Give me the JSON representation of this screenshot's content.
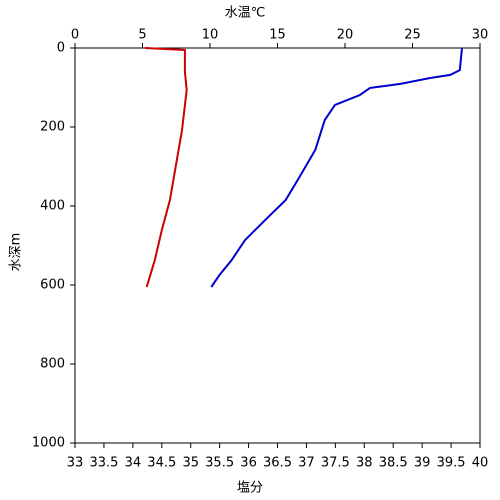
{
  "chart_data": {
    "type": "line",
    "x2_label": "水温℃",
    "x2_label_color": "#0000cc",
    "x_label": "塩分",
    "x_label_color": "#cc0000",
    "y_label": "水深m",
    "xlim": [
      33,
      40
    ],
    "xticks": [
      33,
      33.5,
      34,
      34.5,
      35,
      35.5,
      36,
      36.5,
      37,
      37.5,
      38,
      38.5,
      39,
      39.5,
      40
    ],
    "x2lim": [
      0,
      30
    ],
    "x2ticks": [
      0,
      5,
      10,
      15,
      20,
      25,
      30
    ],
    "ylim": [
      0,
      1000
    ],
    "yticks": [
      0,
      200,
      400,
      600,
      800,
      1000
    ],
    "invert_y": true,
    "series": [
      {
        "color": "#0000cc",
        "axis": "x2",
        "x": [
          28.67,
          28.5,
          27.8,
          26.3,
          24.1,
          21.85,
          21.1,
          19.26,
          18.5,
          17.8,
          16.5,
          15.6,
          14.1,
          12.6,
          11.6,
          10.7,
          10.1
        ],
        "y": [
          0,
          56,
          68,
          76,
          91,
          101,
          119,
          144,
          182,
          258,
          334,
          385,
          435,
          486,
          537,
          575,
          605
        ]
      },
      {
        "color": "#cc0000",
        "axis": "x",
        "x": [
          34.21,
          34.9,
          34.9,
          34.93,
          34.85,
          34.76,
          34.64,
          34.5,
          34.38,
          34.24
        ],
        "y": [
          0,
          5,
          60,
          106,
          208,
          284,
          385,
          461,
          537,
          605
        ]
      }
    ]
  }
}
